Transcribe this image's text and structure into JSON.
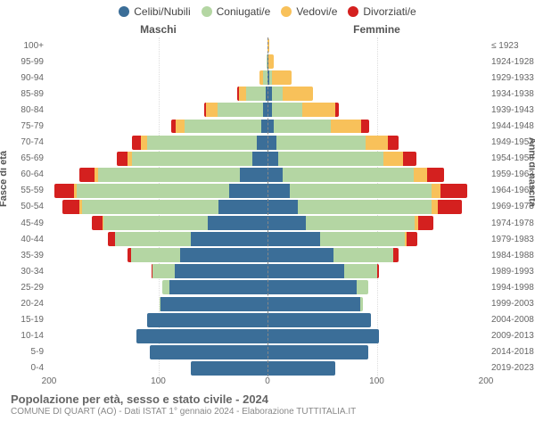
{
  "legend": [
    {
      "label": "Celibi/Nubili",
      "color": "#3b6e98"
    },
    {
      "label": "Coniugati/e",
      "color": "#b4d6a3"
    },
    {
      "label": "Vedovi/e",
      "color": "#f8c15a"
    },
    {
      "label": "Divorziati/e",
      "color": "#d4201f"
    }
  ],
  "header_left": "Maschi",
  "header_right": "Femmine",
  "axis_left_title": "Fasce di età",
  "axis_right_title": "Anni di nascita",
  "title": "Popolazione per età, sesso e stato civile - 2024",
  "subtitle": "COMUNE DI QUART (AO) - Dati ISTAT 1° gennaio 2024 - Elaborazione TUTTITALIA.IT",
  "x_max": 200,
  "x_ticks": [
    -200,
    -100,
    0,
    100,
    200
  ],
  "x_tick_labels": [
    "200",
    "100",
    "0",
    "100",
    "200"
  ],
  "colors": {
    "celibi": "#3b6e98",
    "coniugati": "#b4d6a3",
    "vedovi": "#f8c15a",
    "divorziati": "#d4201f",
    "grid": "#dddddd",
    "center": "#888888",
    "bg": "#ffffff"
  },
  "rows": [
    {
      "age": "100+",
      "birth": "≤ 1923",
      "m": {
        "c": 0,
        "k": 0,
        "v": 0,
        "d": 0
      },
      "f": {
        "c": 0,
        "k": 0,
        "v": 2,
        "d": 0
      }
    },
    {
      "age": "95-99",
      "birth": "1924-1928",
      "m": {
        "c": 0,
        "k": 1,
        "v": 0,
        "d": 0
      },
      "f": {
        "c": 1,
        "k": 0,
        "v": 5,
        "d": 0
      }
    },
    {
      "age": "90-94",
      "birth": "1929-1933",
      "m": {
        "c": 0,
        "k": 4,
        "v": 3,
        "d": 0
      },
      "f": {
        "c": 2,
        "k": 2,
        "v": 18,
        "d": 0
      }
    },
    {
      "age": "85-89",
      "birth": "1934-1938",
      "m": {
        "c": 2,
        "k": 18,
        "v": 6,
        "d": 2
      },
      "f": {
        "c": 4,
        "k": 10,
        "v": 28,
        "d": 0
      }
    },
    {
      "age": "80-84",
      "birth": "1939-1943",
      "m": {
        "c": 4,
        "k": 42,
        "v": 10,
        "d": 2
      },
      "f": {
        "c": 4,
        "k": 28,
        "v": 30,
        "d": 3
      }
    },
    {
      "age": "75-79",
      "birth": "1944-1948",
      "m": {
        "c": 6,
        "k": 70,
        "v": 8,
        "d": 4
      },
      "f": {
        "c": 6,
        "k": 52,
        "v": 28,
        "d": 7
      }
    },
    {
      "age": "70-74",
      "birth": "1949-1953",
      "m": {
        "c": 10,
        "k": 100,
        "v": 6,
        "d": 8
      },
      "f": {
        "c": 8,
        "k": 82,
        "v": 20,
        "d": 10
      }
    },
    {
      "age": "65-69",
      "birth": "1954-1958",
      "m": {
        "c": 14,
        "k": 110,
        "v": 4,
        "d": 10
      },
      "f": {
        "c": 10,
        "k": 96,
        "v": 18,
        "d": 12
      }
    },
    {
      "age": "60-64",
      "birth": "1959-1963",
      "m": {
        "c": 25,
        "k": 130,
        "v": 3,
        "d": 14
      },
      "f": {
        "c": 14,
        "k": 120,
        "v": 12,
        "d": 16
      }
    },
    {
      "age": "55-59",
      "birth": "1964-1968",
      "m": {
        "c": 35,
        "k": 140,
        "v": 2,
        "d": 18
      },
      "f": {
        "c": 20,
        "k": 130,
        "v": 8,
        "d": 25
      }
    },
    {
      "age": "50-54",
      "birth": "1969-1973",
      "m": {
        "c": 45,
        "k": 125,
        "v": 2,
        "d": 16
      },
      "f": {
        "c": 28,
        "k": 122,
        "v": 6,
        "d": 22
      }
    },
    {
      "age": "45-49",
      "birth": "1974-1978",
      "m": {
        "c": 55,
        "k": 95,
        "v": 1,
        "d": 10
      },
      "f": {
        "c": 35,
        "k": 100,
        "v": 3,
        "d": 14
      }
    },
    {
      "age": "40-44",
      "birth": "1979-1983",
      "m": {
        "c": 70,
        "k": 70,
        "v": 0,
        "d": 6
      },
      "f": {
        "c": 48,
        "k": 78,
        "v": 1,
        "d": 10
      }
    },
    {
      "age": "35-39",
      "birth": "1984-1988",
      "m": {
        "c": 80,
        "k": 45,
        "v": 0,
        "d": 3
      },
      "f": {
        "c": 60,
        "k": 55,
        "v": 0,
        "d": 5
      }
    },
    {
      "age": "30-34",
      "birth": "1989-1993",
      "m": {
        "c": 85,
        "k": 20,
        "v": 0,
        "d": 1
      },
      "f": {
        "c": 70,
        "k": 30,
        "v": 0,
        "d": 2
      }
    },
    {
      "age": "25-29",
      "birth": "1994-1998",
      "m": {
        "c": 90,
        "k": 6,
        "v": 0,
        "d": 0
      },
      "f": {
        "c": 82,
        "k": 10,
        "v": 0,
        "d": 0
      }
    },
    {
      "age": "20-24",
      "birth": "1999-2003",
      "m": {
        "c": 98,
        "k": 1,
        "v": 0,
        "d": 0
      },
      "f": {
        "c": 85,
        "k": 2,
        "v": 0,
        "d": 0
      }
    },
    {
      "age": "15-19",
      "birth": "2004-2008",
      "m": {
        "c": 110,
        "k": 0,
        "v": 0,
        "d": 0
      },
      "f": {
        "c": 95,
        "k": 0,
        "v": 0,
        "d": 0
      }
    },
    {
      "age": "10-14",
      "birth": "2009-2013",
      "m": {
        "c": 120,
        "k": 0,
        "v": 0,
        "d": 0
      },
      "f": {
        "c": 102,
        "k": 0,
        "v": 0,
        "d": 0
      }
    },
    {
      "age": "5-9",
      "birth": "2014-2018",
      "m": {
        "c": 108,
        "k": 0,
        "v": 0,
        "d": 0
      },
      "f": {
        "c": 92,
        "k": 0,
        "v": 0,
        "d": 0
      }
    },
    {
      "age": "0-4",
      "birth": "2019-2023",
      "m": {
        "c": 70,
        "k": 0,
        "v": 0,
        "d": 0
      },
      "f": {
        "c": 62,
        "k": 0,
        "v": 0,
        "d": 0
      }
    }
  ]
}
